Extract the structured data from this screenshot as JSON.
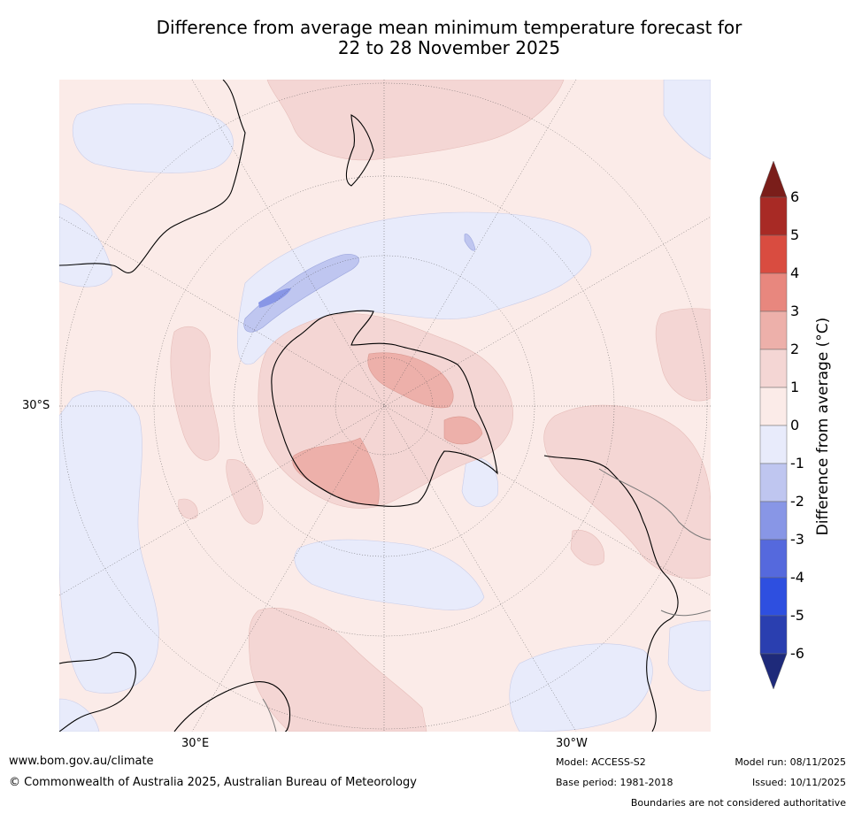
{
  "title_line1": "Difference from average mean minimum temperature forecast for",
  "title_line2": "22 to 28 November 2025",
  "axis_labels": {
    "lat_30s": "30°S",
    "lon_30e": "30°E",
    "lon_30w": "30°W"
  },
  "colorbar": {
    "label": "Difference from average (°C)",
    "ticks": [
      "6",
      "5",
      "4",
      "3",
      "2",
      "1",
      "0",
      "-1",
      "-2",
      "-3",
      "-4",
      "-5",
      "-6"
    ],
    "bins": [
      {
        "range": ">6",
        "color": "#7a1e1a"
      },
      {
        "range": "5 to 6",
        "color": "#a82a25"
      },
      {
        "range": "4 to 5",
        "color": "#d94c40"
      },
      {
        "range": "3 to 4",
        "color": "#e8877e"
      },
      {
        "range": "2 to 3",
        "color": "#edb0aa"
      },
      {
        "range": "1 to 2",
        "color": "#f4d6d4"
      },
      {
        "range": "0 to 1",
        "color": "#fbebe8"
      },
      {
        "range": "-1 to 0",
        "color": "#e8ebfb"
      },
      {
        "range": "-2 to -1",
        "color": "#bfc6f0"
      },
      {
        "range": "-3 to -2",
        "color": "#8896e6"
      },
      {
        "range": "-4 to -3",
        "color": "#5569dd"
      },
      {
        "range": "-5 to -4",
        "color": "#2e4fe0"
      },
      {
        "range": "-6 to -5",
        "color": "#2a3fb0"
      },
      {
        "range": "<-6",
        "color": "#1e2a7a"
      }
    ]
  },
  "footer": {
    "website": "www.bom.gov.au/climate",
    "copyright": "© Commonwealth of Australia 2025, Australian Bureau of Meteorology",
    "model": "Model: ACCESS-S2",
    "base_period": "Base period: 1981-2018",
    "model_run": "Model run: 08/11/2025",
    "issued": "Issued: 10/11/2025",
    "disclaimer": "Boundaries are not considered authoritative"
  }
}
